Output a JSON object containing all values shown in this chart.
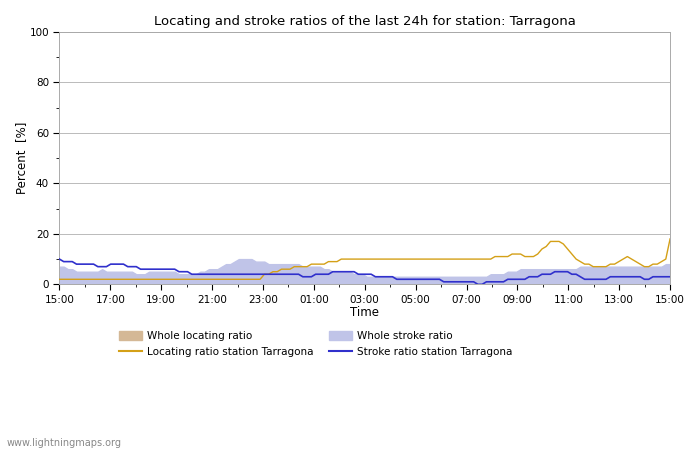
{
  "title": "Locating and stroke ratios of the last 24h for station: Tarragona",
  "xlabel": "Time",
  "ylabel": "Percent  [%]",
  "ylim": [
    0,
    100
  ],
  "yticks_major": [
    0,
    20,
    40,
    60,
    80,
    100
  ],
  "yticks_minor": [
    10,
    30,
    50,
    70,
    90
  ],
  "x_labels": [
    "15:00",
    "17:00",
    "19:00",
    "21:00",
    "23:00",
    "01:00",
    "03:00",
    "05:00",
    "07:00",
    "09:00",
    "11:00",
    "13:00",
    "15:00"
  ],
  "background_color": "#ffffff",
  "plot_bg_color": "#ffffff",
  "watermark": "www.lightningmaps.org",
  "whole_locating_color": "#d4b896",
  "whole_stroke_color": "#c0c4e8",
  "locating_line_color": "#d4a017",
  "stroke_line_color": "#3030cc",
  "whole_locating": [
    2,
    2,
    2,
    2,
    2,
    2,
    2,
    2,
    2,
    2,
    2,
    2,
    2,
    2,
    2,
    2,
    2,
    2,
    2,
    2,
    2,
    2,
    2,
    2,
    2,
    2,
    2,
    2,
    2,
    2,
    2,
    2,
    2,
    2,
    2,
    2,
    2,
    2,
    2,
    2,
    2,
    2,
    2,
    2,
    2,
    2,
    2,
    2,
    2,
    2,
    2,
    2,
    2,
    2,
    2,
    2,
    2,
    2,
    2,
    2,
    2,
    2,
    2,
    2,
    2,
    2,
    2,
    2,
    2,
    2,
    2,
    2,
    2,
    2,
    2,
    2,
    2,
    2,
    2,
    2,
    2,
    2,
    2,
    2,
    2,
    2,
    2,
    2,
    2,
    2,
    2,
    2,
    2,
    2,
    2,
    2,
    2,
    2,
    2,
    2,
    2,
    2,
    2,
    2,
    2,
    2,
    2,
    2,
    2,
    2,
    2,
    2,
    2,
    2,
    2,
    2,
    2,
    2,
    2,
    2,
    2,
    2,
    2,
    2,
    2,
    2,
    2,
    2,
    2,
    2,
    2,
    2,
    2,
    2,
    2,
    2,
    2,
    2,
    2,
    2,
    2,
    2,
    2,
    2
  ],
  "whole_stroke": [
    7,
    7,
    6,
    6,
    5,
    5,
    5,
    5,
    5,
    5,
    6,
    5,
    5,
    5,
    5,
    5,
    5,
    5,
    4,
    4,
    4,
    5,
    5,
    5,
    5,
    5,
    5,
    5,
    4,
    4,
    4,
    4,
    4,
    5,
    5,
    6,
    6,
    6,
    7,
    8,
    8,
    9,
    10,
    10,
    10,
    10,
    9,
    9,
    9,
    8,
    8,
    8,
    8,
    8,
    8,
    8,
    8,
    7,
    7,
    7,
    7,
    7,
    6,
    6,
    5,
    5,
    5,
    5,
    5,
    4,
    4,
    4,
    3,
    3,
    3,
    3,
    3,
    3,
    3,
    3,
    3,
    3,
    3,
    3,
    3,
    3,
    3,
    3,
    3,
    3,
    3,
    3,
    3,
    3,
    3,
    3,
    3,
    3,
    3,
    3,
    3,
    4,
    4,
    4,
    4,
    5,
    5,
    5,
    6,
    6,
    6,
    6,
    6,
    6,
    6,
    6,
    6,
    6,
    6,
    6,
    6,
    6,
    7,
    7,
    7,
    7,
    7,
    7,
    7,
    7,
    7,
    7,
    7,
    7,
    7,
    7,
    7,
    7,
    7,
    7,
    7,
    7,
    8,
    8
  ],
  "locating_station": [
    2,
    2,
    2,
    2,
    2,
    2,
    2,
    2,
    2,
    2,
    2,
    2,
    2,
    2,
    2,
    2,
    2,
    2,
    2,
    2,
    2,
    2,
    2,
    2,
    2,
    2,
    2,
    2,
    2,
    2,
    2,
    2,
    2,
    2,
    2,
    2,
    2,
    2,
    2,
    2,
    2,
    2,
    2,
    2,
    2,
    2,
    2,
    2,
    4,
    4,
    5,
    5,
    6,
    6,
    6,
    7,
    7,
    7,
    7,
    8,
    8,
    8,
    8,
    9,
    9,
    9,
    10,
    10,
    10,
    10,
    10,
    10,
    10,
    10,
    10,
    10,
    10,
    10,
    10,
    10,
    10,
    10,
    10,
    10,
    10,
    10,
    10,
    10,
    10,
    10,
    10,
    10,
    10,
    10,
    10,
    10,
    10,
    10,
    10,
    10,
    10,
    10,
    11,
    11,
    11,
    11,
    12,
    12,
    12,
    11,
    11,
    11,
    12,
    14,
    15,
    17,
    17,
    17,
    16,
    14,
    12,
    10,
    9,
    8,
    8,
    7,
    7,
    7,
    7,
    8,
    8,
    9,
    10,
    11,
    10,
    9,
    8,
    7,
    7,
    8,
    8,
    9,
    10,
    18
  ],
  "stroke_station": [
    10,
    9,
    9,
    9,
    8,
    8,
    8,
    8,
    8,
    7,
    7,
    7,
    8,
    8,
    8,
    8,
    7,
    7,
    7,
    6,
    6,
    6,
    6,
    6,
    6,
    6,
    6,
    6,
    5,
    5,
    5,
    4,
    4,
    4,
    4,
    4,
    4,
    4,
    4,
    4,
    4,
    4,
    4,
    4,
    4,
    4,
    4,
    4,
    4,
    4,
    4,
    4,
    4,
    4,
    4,
    4,
    4,
    3,
    3,
    3,
    4,
    4,
    4,
    4,
    5,
    5,
    5,
    5,
    5,
    5,
    4,
    4,
    4,
    4,
    3,
    3,
    3,
    3,
    3,
    2,
    2,
    2,
    2,
    2,
    2,
    2,
    2,
    2,
    2,
    2,
    1,
    1,
    1,
    1,
    1,
    1,
    1,
    1,
    0,
    0,
    1,
    1,
    1,
    1,
    1,
    2,
    2,
    2,
    2,
    2,
    3,
    3,
    3,
    4,
    4,
    4,
    5,
    5,
    5,
    5,
    4,
    4,
    3,
    2,
    2,
    2,
    2,
    2,
    2,
    3,
    3,
    3,
    3,
    3,
    3,
    3,
    3,
    2,
    2,
    3,
    3,
    3,
    3,
    3
  ]
}
